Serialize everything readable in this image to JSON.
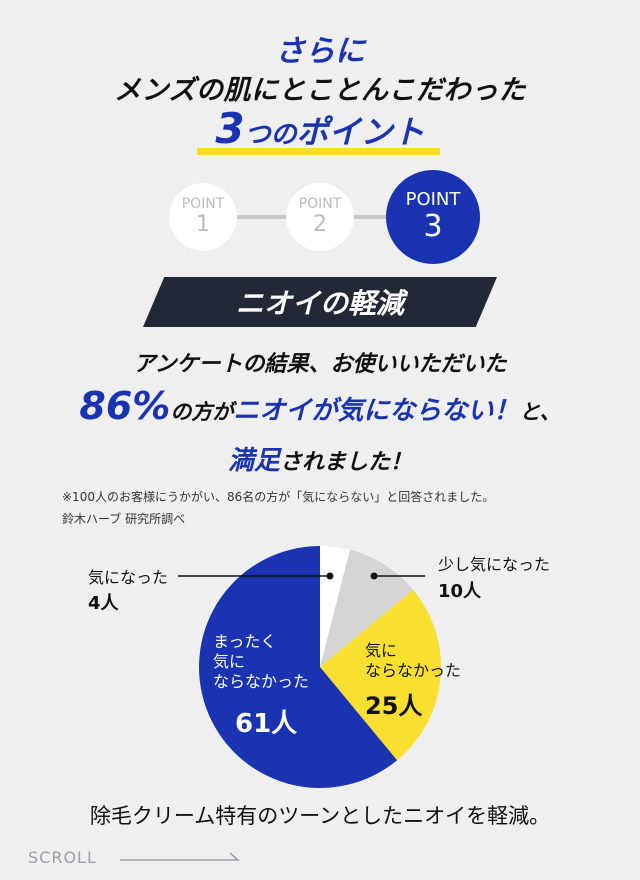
{
  "heading": {
    "line1": "さらに",
    "line2": "メンズの肌にとことんこだわった",
    "points_num": "3",
    "points_mid": "つの",
    "points_end": "ポイント"
  },
  "steps": [
    {
      "label": "POINT",
      "num": "1"
    },
    {
      "label": "POINT",
      "num": "2"
    },
    {
      "label": "POINT",
      "num": "3"
    }
  ],
  "banner": "ニオイの軽減",
  "message": {
    "line1": "アンケートの結果、お使いいただいた",
    "pct": "86%",
    "l2a": "の方が",
    "l2b": "ニオイが気にならない！",
    "l2c": "と、",
    "l3a": "満足",
    "l3b": "されました！"
  },
  "note": {
    "line1": "※100人のお客様にうかがい、86名の方が「気にならない」と回答されました。",
    "line2": "鈴木ハーブ 研究所調べ"
  },
  "chart_data": {
    "type": "pie",
    "slices": [
      {
        "label": "気になった",
        "value": 4,
        "unit": "人",
        "color": "#ffffff"
      },
      {
        "label": "少し気になった",
        "value": 10,
        "unit": "人",
        "color": "#d4d4d4"
      },
      {
        "label": "気にならなかった",
        "value": 25,
        "unit": "人",
        "color": "#f9e030"
      },
      {
        "label": "まったく気にならなかった",
        "value": 61,
        "unit": "人",
        "color": "#1a33b0"
      }
    ]
  },
  "pie_labels": {
    "s0_label": "気になった",
    "s0_value": "4人",
    "s1_label": "少し気になった",
    "s1_value": "10人",
    "s2_line1": "気に",
    "s2_line2": "ならなかった",
    "s2_value": "25人",
    "s3_line1": "まったく",
    "s3_line2": "気に",
    "s3_line3": "ならなかった",
    "s3_value": "61人"
  },
  "bottom_text": "除毛クリーム特有のツーンとしたニオイを軽減。",
  "scroll_label": "SCROLL"
}
